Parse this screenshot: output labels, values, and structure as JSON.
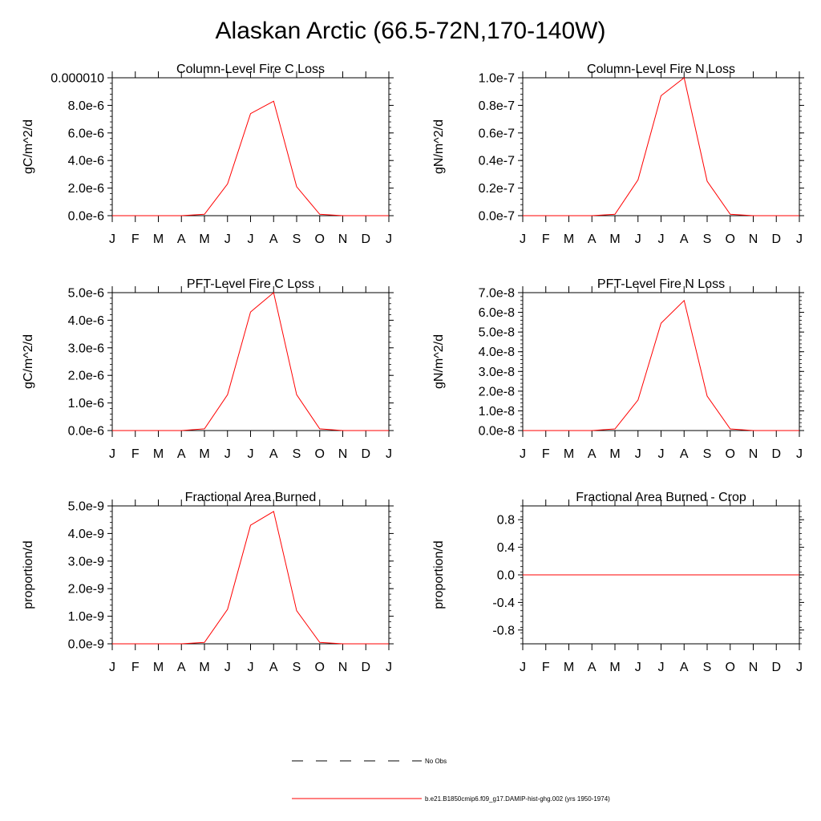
{
  "figure_title": "Alaskan Arctic (66.5-72N,170-140W)",
  "colors": {
    "series": "#ff0000",
    "axes": "#000000"
  },
  "months": [
    "J",
    "F",
    "M",
    "A",
    "M",
    "J",
    "J",
    "A",
    "S",
    "O",
    "N",
    "D",
    "J"
  ],
  "legend": {
    "obs_label": "No Obs",
    "model_label": "b.e21.B1850cmip6.f09_g17.DAMIP-hist-ghg.002 (yrs 1950-1974)"
  },
  "chart_data": [
    {
      "type": "line",
      "title": "Column-Level Fire C Loss",
      "ylabel": "gC/m^2/d",
      "ylim": [
        0,
        1e-05
      ],
      "yticks": [
        0,
        2e-06,
        4e-06,
        6e-06,
        8e-06,
        1e-05
      ],
      "ytick_labels": [
        "0.0e-6",
        "2.0e-6",
        "4.0e-6",
        "6.0e-6",
        "8.0e-6",
        "0.000010"
      ],
      "x": [
        "J",
        "F",
        "M",
        "A",
        "M",
        "J",
        "J",
        "A",
        "S",
        "O",
        "N",
        "D",
        "J"
      ],
      "values": [
        0,
        0,
        0,
        0,
        1e-07,
        2.3e-06,
        7.4e-06,
        8.3e-06,
        2.1e-06,
        1e-07,
        0,
        0,
        0
      ]
    },
    {
      "type": "line",
      "title": "Column-Level Fire N Loss",
      "ylabel": "gN/m^2/d",
      "ylim": [
        0,
        1e-07
      ],
      "yticks": [
        0,
        2e-08,
        4e-08,
        6e-08,
        8e-08,
        1e-07
      ],
      "ytick_labels": [
        "0.0e-7",
        "0.2e-7",
        "0.4e-7",
        "0.6e-7",
        "0.8e-7",
        "1.0e-7"
      ],
      "x": [
        "J",
        "F",
        "M",
        "A",
        "M",
        "J",
        "J",
        "A",
        "S",
        "O",
        "N",
        "D",
        "J"
      ],
      "values": [
        0,
        0,
        0,
        0,
        1e-09,
        2.6e-08,
        8.7e-08,
        1e-07,
        2.5e-08,
        1e-09,
        0,
        0,
        0
      ]
    },
    {
      "type": "line",
      "title": "PFT-Level Fire C Loss",
      "ylabel": "gC/m^2/d",
      "ylim": [
        0,
        5e-06
      ],
      "yticks": [
        0,
        1e-06,
        2e-06,
        3e-06,
        4e-06,
        5e-06
      ],
      "ytick_labels": [
        "0.0e-6",
        "1.0e-6",
        "2.0e-6",
        "3.0e-6",
        "4.0e-6",
        "5.0e-6"
      ],
      "x": [
        "J",
        "F",
        "M",
        "A",
        "M",
        "J",
        "J",
        "A",
        "S",
        "O",
        "N",
        "D",
        "J"
      ],
      "values": [
        0,
        0,
        0,
        0,
        6e-08,
        1.3e-06,
        4.3e-06,
        5e-06,
        1.3e-06,
        6e-08,
        0,
        0,
        0
      ]
    },
    {
      "type": "line",
      "title": "PFT-Level Fire N Loss",
      "ylabel": "gN/m^2/d",
      "ylim": [
        0,
        7e-08
      ],
      "yticks": [
        0,
        1e-08,
        2e-08,
        3e-08,
        4e-08,
        5e-08,
        6e-08,
        7e-08
      ],
      "ytick_labels": [
        "0.0e-8",
        "1.0e-8",
        "2.0e-8",
        "3.0e-8",
        "4.0e-8",
        "5.0e-8",
        "6.0e-8",
        "7.0e-8"
      ],
      "x": [
        "J",
        "F",
        "M",
        "A",
        "M",
        "J",
        "J",
        "A",
        "S",
        "O",
        "N",
        "D",
        "J"
      ],
      "values": [
        0,
        0,
        0,
        0,
        8e-10,
        1.55e-08,
        5.45e-08,
        6.6e-08,
        1.75e-08,
        8e-10,
        0,
        0,
        0
      ]
    },
    {
      "type": "line",
      "title": "Fractional Area Burned",
      "ylabel": "proportion/d",
      "ylim": [
        0,
        5e-09
      ],
      "yticks": [
        0,
        1e-09,
        2e-09,
        3e-09,
        4e-09,
        5e-09
      ],
      "ytick_labels": [
        "0.0e-9",
        "1.0e-9",
        "2.0e-9",
        "3.0e-9",
        "4.0e-9",
        "5.0e-9"
      ],
      "x": [
        "J",
        "F",
        "M",
        "A",
        "M",
        "J",
        "J",
        "A",
        "S",
        "O",
        "N",
        "D",
        "J"
      ],
      "values": [
        0,
        0,
        0,
        0,
        5e-11,
        1.25e-09,
        4.3e-09,
        4.8e-09,
        1.2e-09,
        5e-11,
        0,
        0,
        0
      ]
    },
    {
      "type": "line",
      "title": "Fractional Area Burned - Crop",
      "ylabel": "proportion/d",
      "ylim": [
        -1,
        1
      ],
      "yticks": [
        -0.8,
        -0.4,
        0,
        0.4,
        0.8
      ],
      "ytick_labels": [
        "-0.8",
        "-0.4",
        "0.0",
        "0.4",
        "0.8"
      ],
      "x": [
        "J",
        "F",
        "M",
        "A",
        "M",
        "J",
        "J",
        "A",
        "S",
        "O",
        "N",
        "D",
        "J"
      ],
      "values": [
        0,
        0,
        0,
        0,
        0,
        0,
        0,
        0,
        0,
        0,
        0,
        0,
        0
      ]
    }
  ]
}
